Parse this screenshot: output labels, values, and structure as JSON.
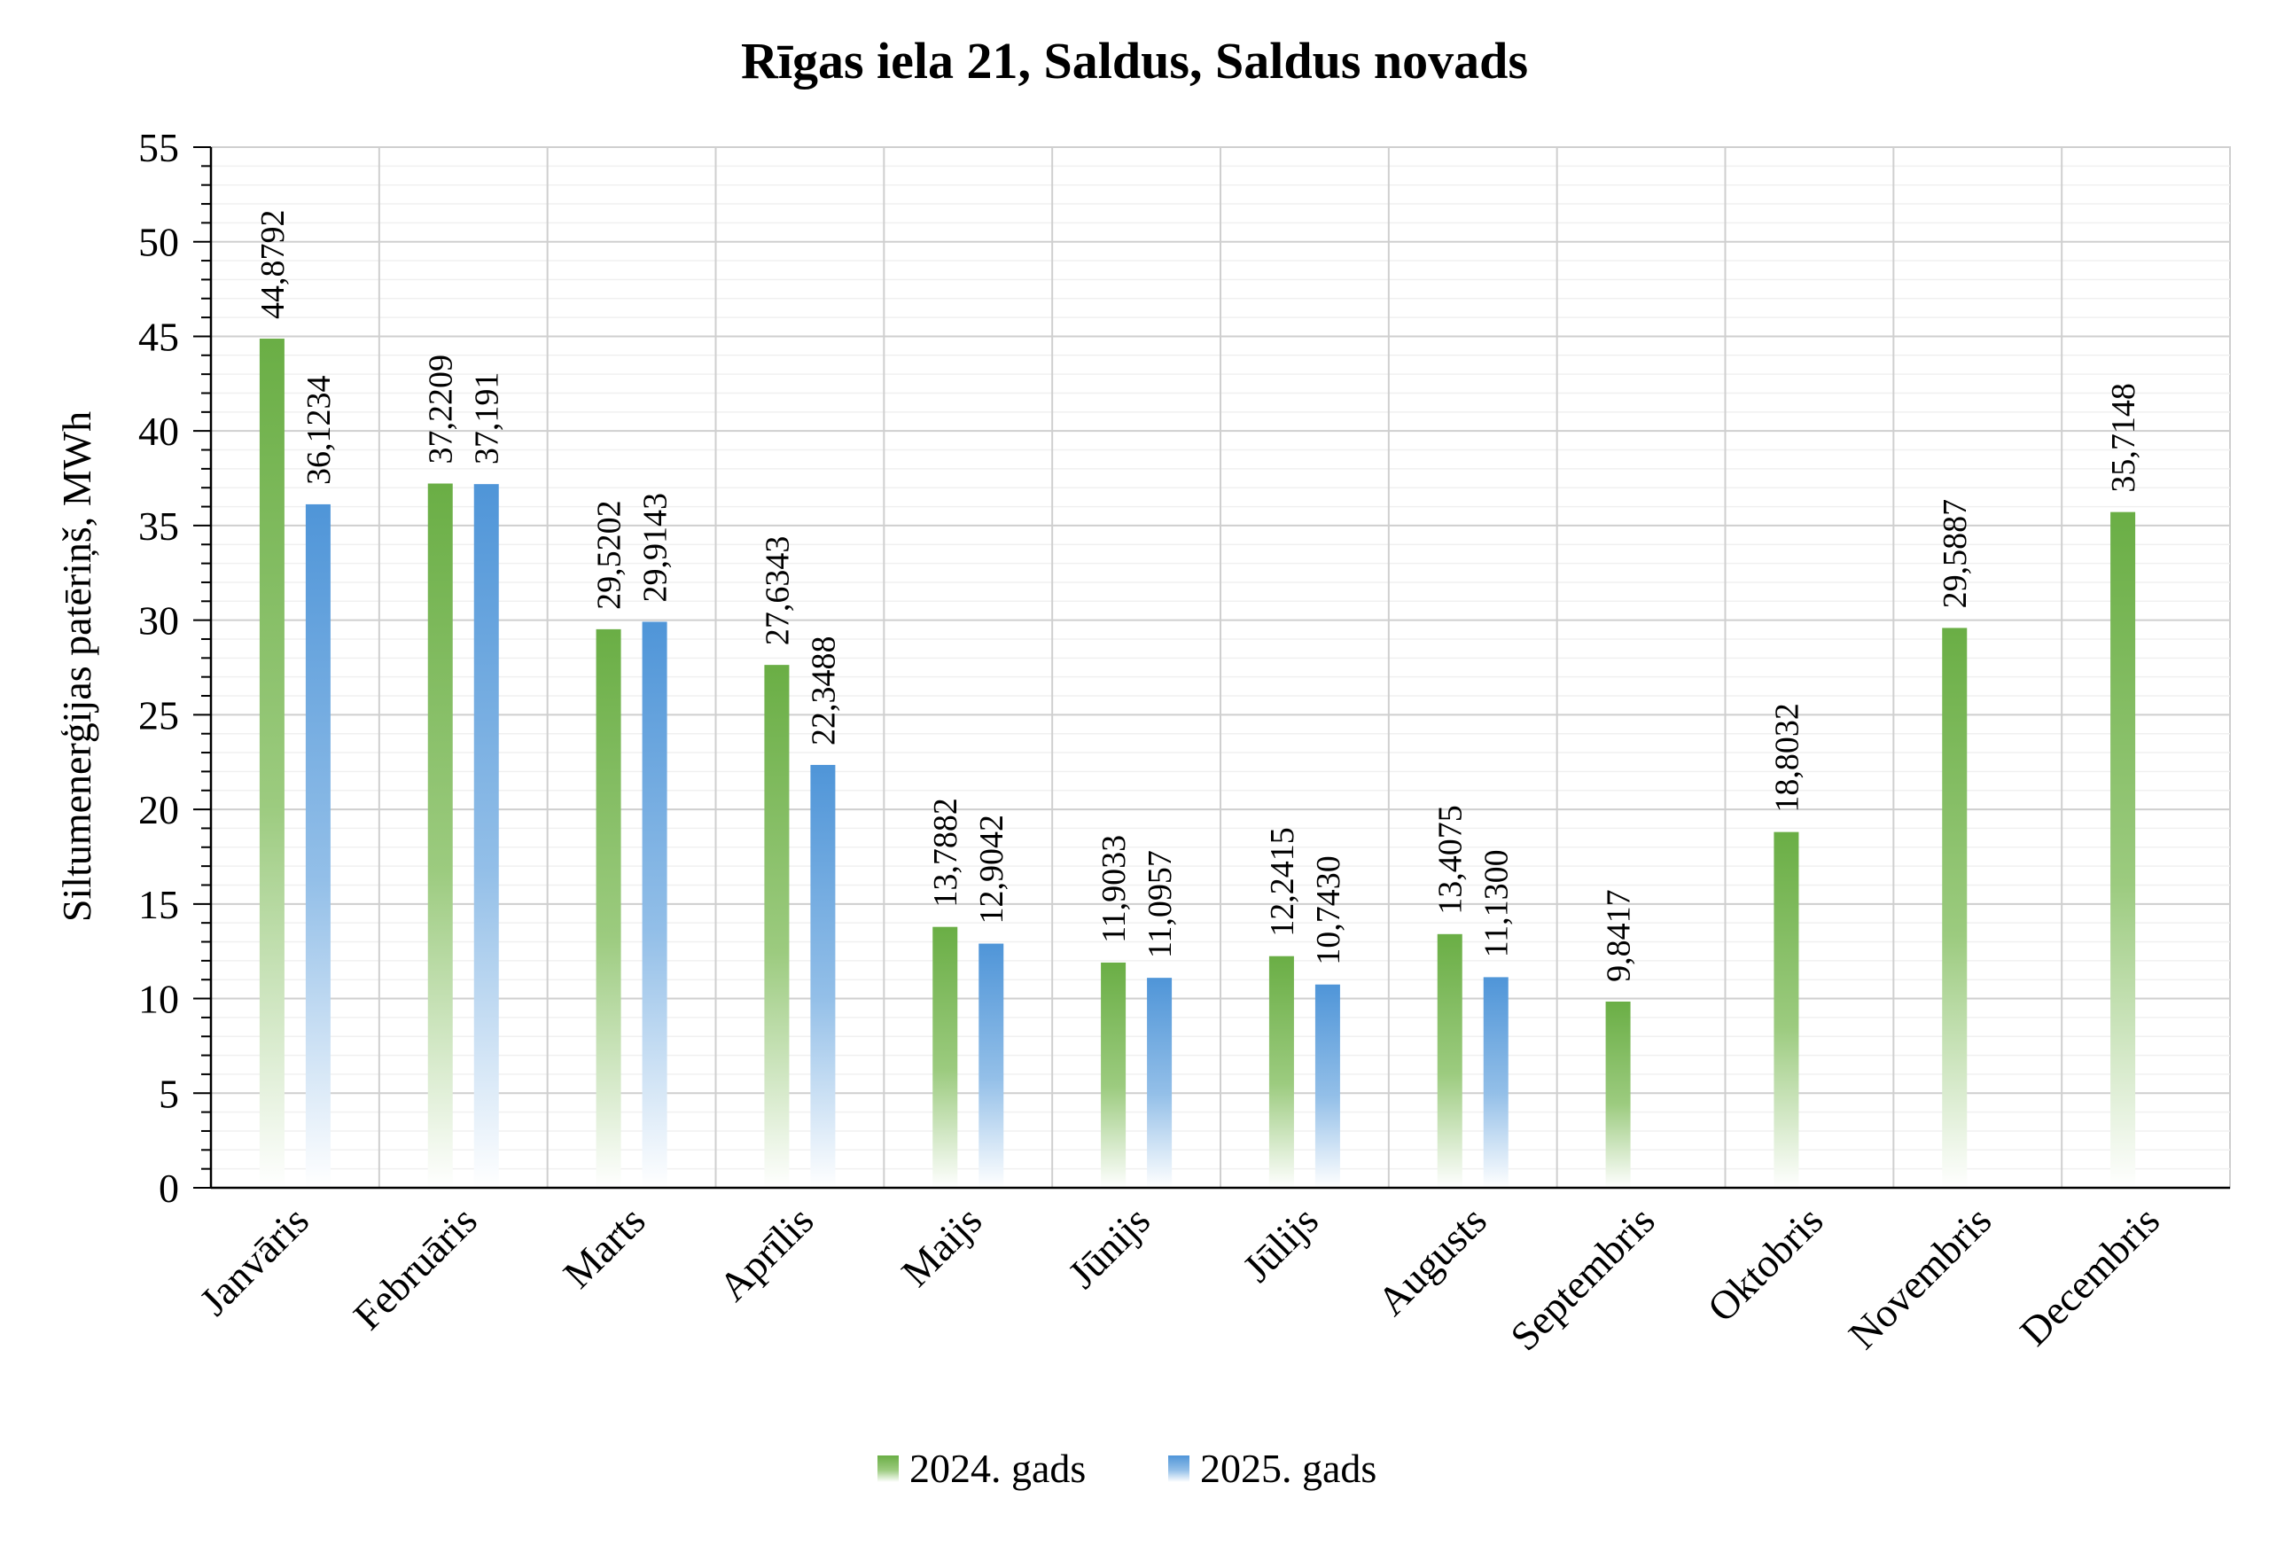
{
  "chart_data": {
    "type": "bar",
    "title": "Rīgas iela 21, Saldus, Saldus novads",
    "ylabel": "Siltumenerģijas patēriņš, MWh",
    "xlabel": "",
    "ylim": [
      0,
      55
    ],
    "ytick_step": 5,
    "yticks": [
      "0",
      "5",
      "10",
      "15",
      "20",
      "25",
      "30",
      "35",
      "40",
      "45",
      "50",
      "55"
    ],
    "grid": true,
    "legend_position": "bottom",
    "categories": [
      "Janvāris",
      "Februāris",
      "Marts",
      "Aprīlis",
      "Maijs",
      "Jūnijs",
      "Jūlijs",
      "Augusts",
      "Septembris",
      "Oktobris",
      "Novembris",
      "Decembris"
    ],
    "series": [
      {
        "name": "2024. gads",
        "color": "#6aae45",
        "values": [
          44.8792,
          37.2209,
          29.5202,
          27.6343,
          13.7882,
          11.9033,
          12.2415,
          13.4075,
          9.8417,
          18.8032,
          29.5887,
          35.7148
        ],
        "labels": [
          "44,8792",
          "37,2209",
          "29,5202",
          "27,6343",
          "13,7882",
          "11,9033",
          "12,2415",
          "13,4075",
          "9,8417",
          "18,8032",
          "29,5887",
          "35,7148"
        ]
      },
      {
        "name": "2025. gads",
        "color": "#4f95d8",
        "values": [
          36.1234,
          37.191,
          29.9143,
          22.3488,
          12.9042,
          11.0957,
          10.743,
          11.13,
          null,
          null,
          null,
          null
        ],
        "labels": [
          "36,1234",
          "37,191",
          "29,9143",
          "22,3488",
          "12,9042",
          "11,0957",
          "10,7430",
          "11,1300",
          null,
          null,
          null,
          null
        ]
      }
    ]
  }
}
